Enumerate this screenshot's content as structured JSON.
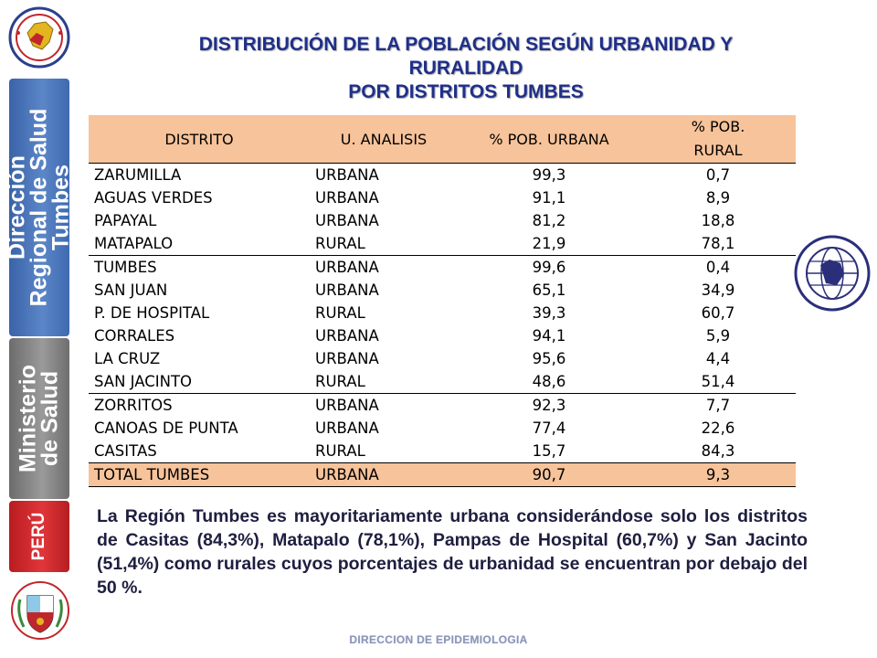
{
  "sidebar": {
    "band1_lines": [
      "Dirección",
      "Regional de Salud",
      "Tumbes"
    ],
    "band2_lines": [
      "Ministerio",
      "de Salud"
    ],
    "band3_label": "PERÚ",
    "colors": {
      "blue": "#4a74b8",
      "gray": "#8a8a8a",
      "red": "#d02a2e"
    }
  },
  "title": {
    "line1": "DISTRIBUCIÓN DE LA POBLACIÓN SEGÚN URBANIDAD Y",
    "line2": "RURALIDAD",
    "line3": "POR DISTRITOS TUMBES",
    "color": "#1f2f8a"
  },
  "table": {
    "header_color": "#f7c39a",
    "headers": [
      "DISTRITO",
      "U. ANALISIS",
      "% POB. URBANA",
      "% POB.",
      "RURAL"
    ],
    "rows": [
      {
        "distrito": "ZARUMILLA",
        "u_analisis": "URBANA",
        "urbana": "99,3",
        "rural": "0,7"
      },
      {
        "distrito": "AGUAS VERDES",
        "u_analisis": "URBANA",
        "urbana": "91,1",
        "rural": "8,9"
      },
      {
        "distrito": "PAPAYAL",
        "u_analisis": "URBANA",
        "urbana": "81,2",
        "rural": "18,8"
      },
      {
        "distrito": "MATAPALO",
        "u_analisis": "RURAL",
        "urbana": "21,9",
        "rural": "78,1"
      },
      {
        "distrito": "TUMBES",
        "u_analisis": "URBANA",
        "urbana": "99,6",
        "rural": "0,4"
      },
      {
        "distrito": "SAN JUAN",
        "u_analisis": "URBANA",
        "urbana": "65,1",
        "rural": "34,9"
      },
      {
        "distrito": "P. DE HOSPITAL",
        "u_analisis": "RURAL",
        "urbana": "39,3",
        "rural": "60,7"
      },
      {
        "distrito": "CORRALES",
        "u_analisis": "URBANA",
        "urbana": "94,1",
        "rural": "5,9"
      },
      {
        "distrito": "LA CRUZ",
        "u_analisis": "URBANA",
        "urbana": "95,6",
        "rural": "4,4"
      },
      {
        "distrito": "SAN JACINTO",
        "u_analisis": "RURAL",
        "urbana": "48,6",
        "rural": "51,4"
      },
      {
        "distrito": "ZORRITOS",
        "u_analisis": "URBANA",
        "urbana": "92,3",
        "rural": "7,7"
      },
      {
        "distrito": "CANOAS DE PUNTA",
        "u_analisis": "URBANA",
        "urbana": "77,4",
        "rural": "22,6"
      },
      {
        "distrito": "CASITAS",
        "u_analisis": "RURAL",
        "urbana": "15,7",
        "rural": "84,3"
      }
    ],
    "total": {
      "distrito": "TOTAL TUMBES",
      "u_analisis": "URBANA",
      "urbana": "90,7",
      "rural": "9,3"
    }
  },
  "paragraph": "La Región Tumbes es mayoritariamente urbana considerándose solo los distritos de  Casitas (84,3%), Matapalo (78,1%), Pampas de Hospital (60,7%) y San Jacinto (51,4%) como rurales cuyos porcentajes de urbanidad se encuentran por debajo del 50 %.",
  "footer": "DIRECCION DE EPIDEMIOLOGIA"
}
